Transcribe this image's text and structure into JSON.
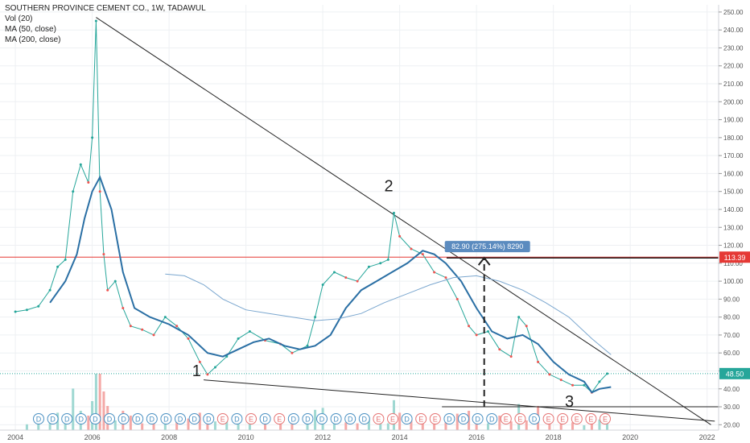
{
  "legend": {
    "title": "SOUTHERN PROVINCE CEMENT CO., 1W, TADAWUL",
    "vol": "Vol (20)",
    "ma50": "MA (50, close)",
    "ma200": "MA (200, close)"
  },
  "chart_data": {
    "type": "line",
    "title": "SOUTHERN PROVINCE CEMENT CO., 1W, TADAWUL",
    "xlabel": "",
    "ylabel": "",
    "xlim": [
      2003.6,
      2022.3
    ],
    "ylim": [
      17,
      254
    ],
    "y_scale": "linear",
    "grid": true,
    "y_ticks": [
      20,
      30,
      40,
      50,
      60,
      70,
      80,
      90,
      100,
      110,
      120,
      130,
      140,
      150,
      160,
      170,
      180,
      190,
      200,
      210,
      220,
      230,
      240,
      250
    ],
    "y_tick_labels": [
      "20.00",
      "30.00",
      "40.00",
      "50.00",
      "60.00",
      "70.00",
      "80.00",
      "90.00",
      "100.00",
      "110.00",
      "120.00",
      "130.00",
      "140.00",
      "150.00",
      "160.00",
      "170.00",
      "180.00",
      "190.00",
      "200.00",
      "210.00",
      "220.00",
      "230.00",
      "240.00",
      "250.00"
    ],
    "x_ticks": [
      2004,
      2006,
      2008,
      2010,
      2012,
      2014,
      2016,
      2018,
      2020,
      2022
    ],
    "x_tick_labels": [
      "2004",
      "2006",
      "2008",
      "2010",
      "2012",
      "2014",
      "2016",
      "2018",
      "2020",
      "2022"
    ],
    "series": [
      {
        "name": "",
        "role": "price",
        "color": "#26a69a",
        "down_color": "#ef5350",
        "x": [
          2004.0,
          2004.3,
          2004.6,
          2004.9,
          2005.1,
          2005.3,
          2005.5,
          2005.7,
          2005.9,
          2006.0,
          2006.1,
          2006.2,
          2006.3,
          2006.4,
          2006.6,
          2006.8,
          2007.0,
          2007.3,
          2007.6,
          2007.9,
          2008.2,
          2008.5,
          2008.8,
          2009.0,
          2009.2,
          2009.5,
          2009.8,
          2010.1,
          2010.5,
          2010.9,
          2011.2,
          2011.6,
          2011.8,
          2012.0,
          2012.3,
          2012.6,
          2012.9,
          2013.2,
          2013.5,
          2013.7,
          2013.85,
          2014.0,
          2014.3,
          2014.6,
          2014.9,
          2015.2,
          2015.5,
          2015.8,
          2016.0,
          2016.3,
          2016.6,
          2016.9,
          2017.1,
          2017.3,
          2017.6,
          2017.9,
          2018.2,
          2018.5,
          2018.8,
          2019.0,
          2019.2,
          2019.4
        ],
        "y": [
          83,
          84,
          86,
          95,
          108,
          112,
          150,
          165,
          155,
          180,
          245,
          150,
          115,
          95,
          100,
          85,
          75,
          73,
          70,
          80,
          75,
          68,
          55,
          48,
          52,
          58,
          68,
          72,
          67,
          65,
          60,
          64,
          80,
          98,
          105,
          102,
          100,
          108,
          110,
          112,
          138,
          125,
          118,
          115,
          105,
          102,
          90,
          75,
          70,
          72,
          62,
          58,
          80,
          75,
          55,
          48,
          45,
          42,
          42,
          38,
          44,
          48.5
        ]
      },
      {
        "name": "MA (50, close)",
        "role": "ma50",
        "color": "#2a6fa4",
        "x": [
          2004.9,
          2005.3,
          2005.6,
          2005.8,
          2006.0,
          2006.2,
          2006.5,
          2006.8,
          2007.1,
          2007.5,
          2008.0,
          2008.5,
          2009.0,
          2009.4,
          2009.8,
          2010.2,
          2010.6,
          2011.0,
          2011.4,
          2011.8,
          2012.2,
          2012.6,
          2013.0,
          2013.4,
          2013.8,
          2014.2,
          2014.6,
          2014.9,
          2015.2,
          2015.6,
          2016.0,
          2016.4,
          2016.8,
          2017.2,
          2017.6,
          2018.0,
          2018.4,
          2018.8,
          2019.0,
          2019.2,
          2019.5
        ],
        "y": [
          88,
          100,
          115,
          135,
          150,
          158,
          140,
          105,
          85,
          80,
          76,
          70,
          60,
          58,
          62,
          66,
          68,
          64,
          62,
          64,
          70,
          85,
          95,
          100,
          105,
          110,
          117,
          115,
          110,
          100,
          85,
          72,
          68,
          70,
          65,
          55,
          48,
          44,
          38,
          40,
          41
        ]
      },
      {
        "name": "MA (200, close)",
        "role": "ma200",
        "color": "#7ba7cf",
        "x": [
          2007.9,
          2008.4,
          2008.9,
          2009.4,
          2010.0,
          2010.6,
          2011.2,
          2011.8,
          2012.4,
          2013.0,
          2013.6,
          2014.2,
          2014.8,
          2015.4,
          2016.0,
          2016.6,
          2017.2,
          2017.8,
          2018.4,
          2019.0,
          2019.5
        ],
        "y": [
          104,
          103,
          98,
          90,
          84,
          82,
          80,
          78,
          79,
          82,
          88,
          93,
          98,
          102,
          103,
          100,
          95,
          88,
          80,
          68,
          59
        ]
      }
    ],
    "volume_note": "Vol (20)",
    "annotations": {
      "wave_labels": [
        {
          "text": "1",
          "x": 2008.6,
          "y": 47
        },
        {
          "text": "2",
          "x": 2013.6,
          "y": 150
        },
        {
          "text": "3",
          "x": 2018.3,
          "y": 30
        }
      ],
      "measure_label": "82.90 (275.14%) 8290",
      "horizontal_level": 113.39,
      "horizontal_level_label": "113.39",
      "last_price": 48.5,
      "last_price_label": "48.50",
      "trendlines": [
        {
          "from": [
            2006.1,
            247
          ],
          "to": [
            2022.1,
            20
          ]
        },
        {
          "from": [
            2008.9,
            45
          ],
          "to": [
            2022.2,
            22
          ]
        },
        {
          "from": [
            2015.1,
            30
          ],
          "to": [
            2022.3,
            30
          ]
        }
      ],
      "measure_arrow": {
        "x": 2016.2,
        "y_from": 30,
        "y_to": 113
      }
    },
    "event_markers": [
      "D",
      "D",
      "D",
      "D",
      "D",
      "D",
      "D",
      "D",
      "D",
      "D",
      "D",
      "D",
      "D",
      "E",
      "D",
      "E",
      "D",
      "E",
      "D",
      "D",
      "D",
      "D",
      "D",
      "D",
      "E",
      "E",
      "D",
      "E",
      "E",
      "D",
      "D",
      "D",
      "D",
      "E",
      "E",
      "D",
      "E",
      "E",
      "E",
      "E",
      "E"
    ]
  }
}
